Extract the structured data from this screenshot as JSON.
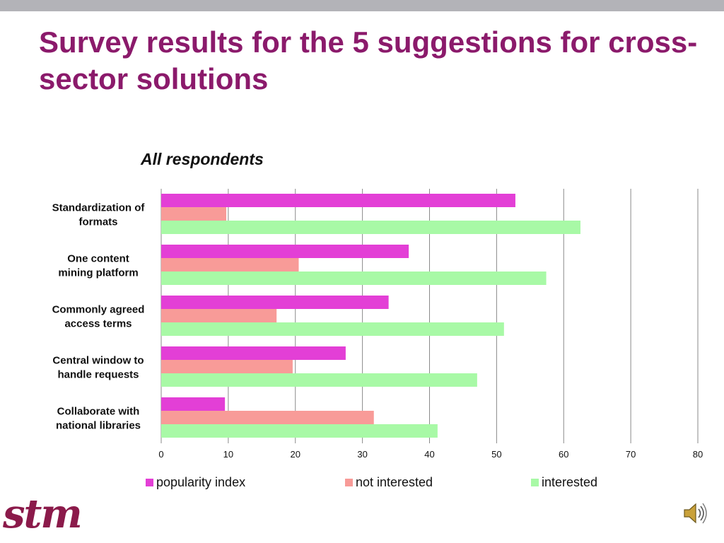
{
  "slide": {
    "title": "Survey results for the 5 suggestions for cross-sector solutions",
    "logo_text": "stm",
    "icons": {
      "audio": "speaker-icon"
    },
    "colors": {
      "title": "#8B1A6B",
      "topbar": "#B3B3B8",
      "logo": "#8B1A4A"
    }
  },
  "chart_data": {
    "type": "bar",
    "orientation": "horizontal",
    "title": "All respondents",
    "categories": [
      "Standardization of formats",
      "One content mining platform",
      "Commonly agreed access terms",
      "Central window to handle requests",
      "Collaborate with national libraries"
    ],
    "series": [
      {
        "name": "popularity index",
        "color": "#E33FD6",
        "values": [
          52.8,
          36.9,
          33.9,
          27.5,
          9.5
        ]
      },
      {
        "name": "not interested",
        "color": "#F89B98",
        "values": [
          9.7,
          20.5,
          17.2,
          19.6,
          31.7
        ]
      },
      {
        "name": "interested",
        "color": "#A8F9A6",
        "values": [
          62.5,
          57.4,
          51.1,
          47.1,
          41.2
        ]
      }
    ],
    "xlim": [
      0,
      80
    ],
    "xticks": [
      0,
      10,
      20,
      30,
      40,
      50,
      60,
      70,
      80
    ],
    "xlabel": "",
    "ylabel": "",
    "grid": "vertical",
    "legend_position": "bottom"
  }
}
